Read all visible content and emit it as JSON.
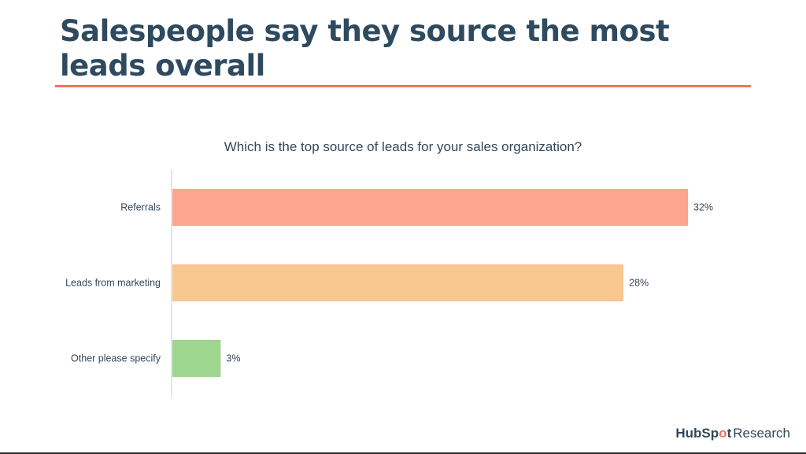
{
  "slide": {
    "title": "Salespeople say they source the most leads overall"
  },
  "chart_data": {
    "type": "bar",
    "orientation": "horizontal",
    "title": "Which is the top source of leads for your sales organization?",
    "categories": [
      "Referrals",
      "Leads from marketing",
      "Other please specify"
    ],
    "values": [
      32,
      28,
      3
    ],
    "value_labels": [
      "32%",
      "28%",
      "3%"
    ],
    "unit": "%",
    "colors": [
      "#fca58f",
      "#f9c790",
      "#9ed690"
    ],
    "xlim": [
      0,
      32
    ],
    "grid": false,
    "legend": "none"
  },
  "brand": {
    "hub": "HubSp",
    "dot": "o",
    "t": "t",
    "research": "Research"
  }
}
